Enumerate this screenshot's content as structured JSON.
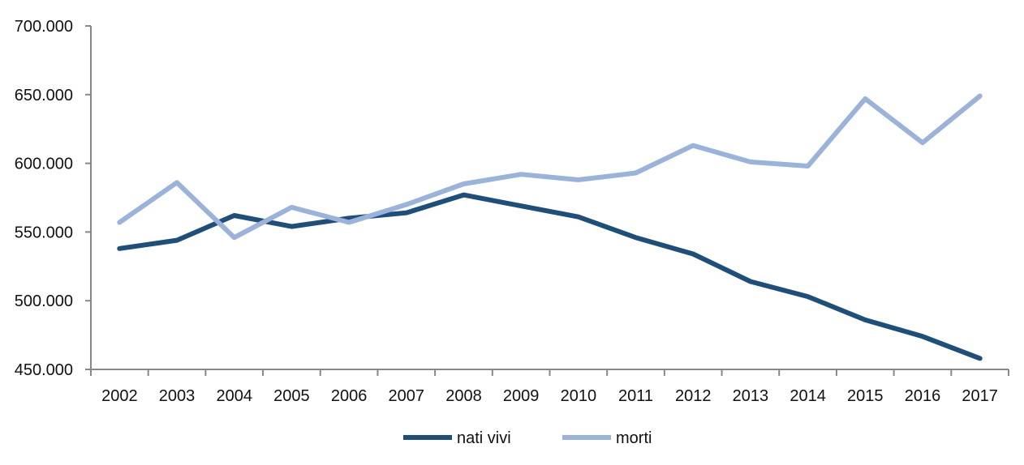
{
  "chart_data": {
    "type": "line",
    "title": "",
    "xlabel": "",
    "ylabel": "",
    "categories": [
      "2002",
      "2003",
      "2004",
      "2005",
      "2006",
      "2007",
      "2008",
      "2009",
      "2010",
      "2011",
      "2012",
      "2013",
      "2014",
      "2015",
      "2016",
      "2017"
    ],
    "ylim": [
      450000,
      700000
    ],
    "yticks": [
      450000,
      500000,
      550000,
      600000,
      650000,
      700000
    ],
    "ytick_labels": [
      "450.000",
      "500.000",
      "550.000",
      "600.000",
      "650.000",
      "700.000"
    ],
    "grid": false,
    "legend_position": "bottom",
    "series": [
      {
        "name": "nati vivi",
        "color": "#1f4e79",
        "values": [
          538000,
          544000,
          562000,
          554000,
          560000,
          564000,
          577000,
          569000,
          561000,
          546000,
          534000,
          514000,
          503000,
          486000,
          474000,
          458000
        ]
      },
      {
        "name": "morti",
        "color": "#9bb3d9",
        "values": [
          557000,
          586000,
          546000,
          568000,
          557000,
          570000,
          585000,
          592000,
          588000,
          593000,
          613000,
          601000,
          598000,
          647000,
          615000,
          649000
        ]
      }
    ]
  }
}
